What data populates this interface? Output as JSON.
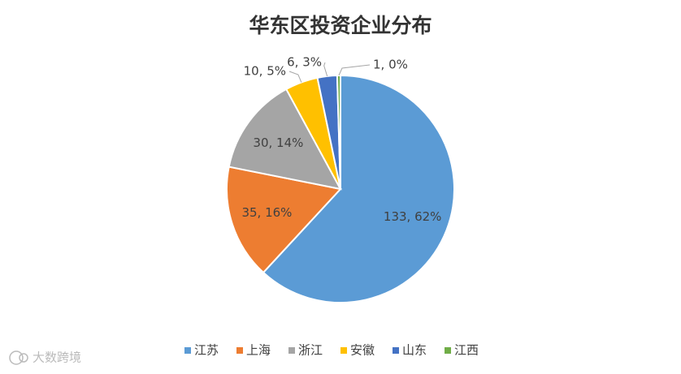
{
  "chart_data": {
    "type": "pie",
    "title": "华东区投资企业分布",
    "categories": [
      "江苏",
      "上海",
      "浙江",
      "安徽",
      "山东",
      "江西"
    ],
    "values": [
      133,
      35,
      30,
      10,
      6,
      1
    ],
    "value_labels": [
      "133, 62%",
      "35, 16%",
      "30, 14%",
      "10, 5%",
      "6, 3%",
      "1, 0%"
    ],
    "colors": [
      "#5b9bd5",
      "#ed7d31",
      "#a5a5a5",
      "#ffc000",
      "#4472c4",
      "#70ad47"
    ],
    "legend": "bottom"
  },
  "watermark": "大数跨境"
}
